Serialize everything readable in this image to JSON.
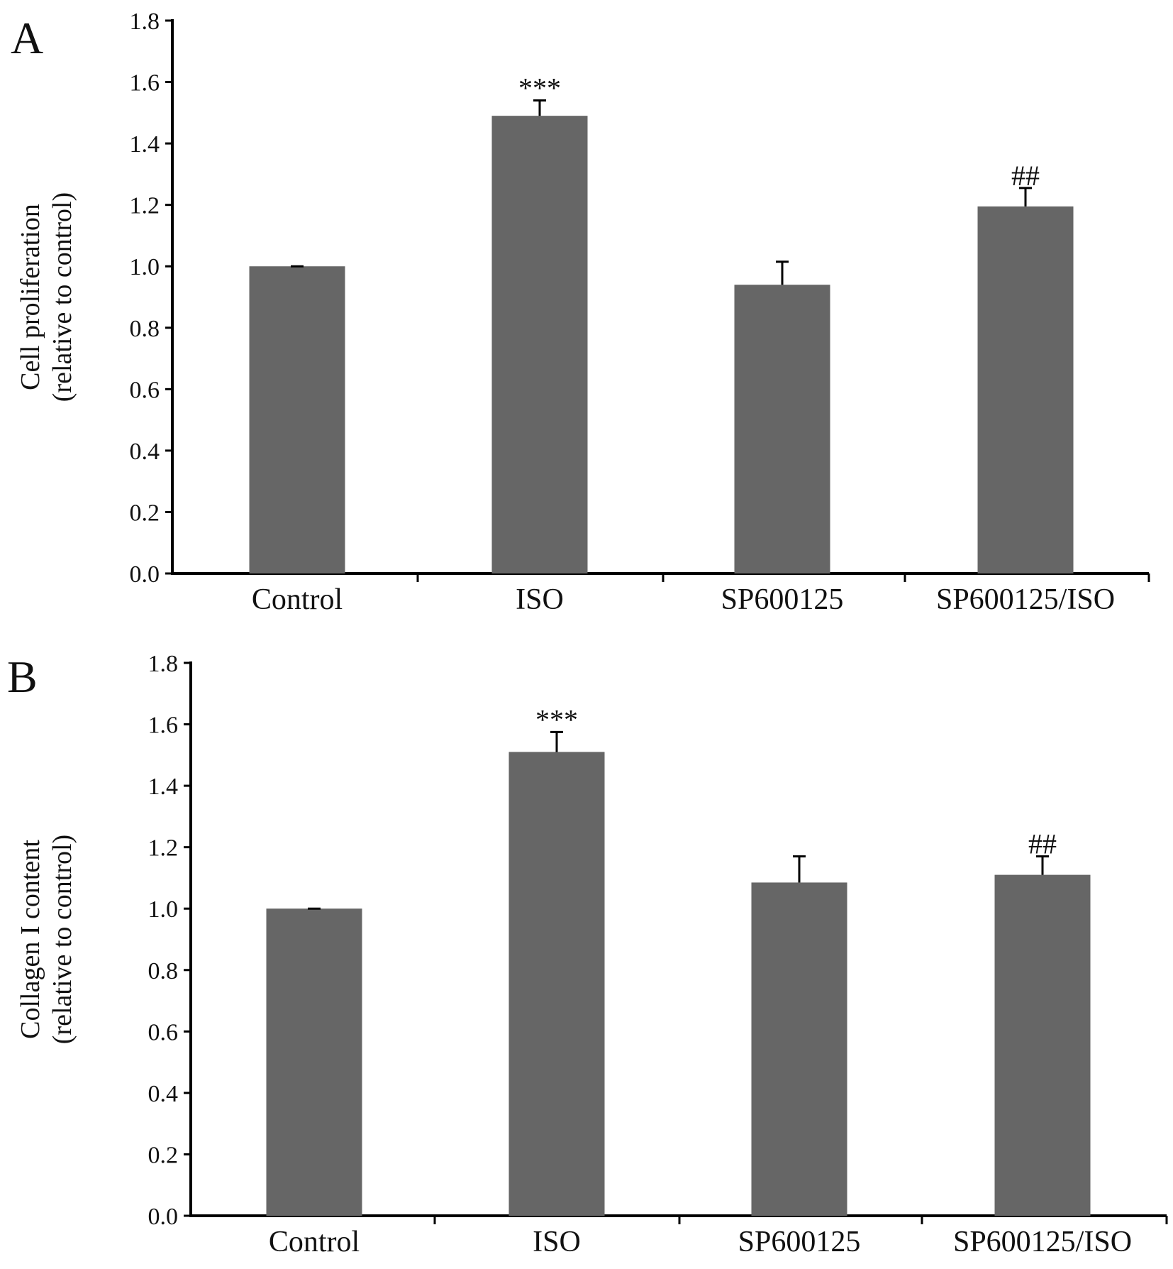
{
  "chart_data": [
    {
      "type": "bar",
      "panel_label": "A",
      "ylabel_line1": "Cell proliferation",
      "ylabel_line2": "(relative to control)",
      "categories": [
        "Control",
        "ISO",
        "SP600125",
        "SP600125/ISO"
      ],
      "values": [
        1.0,
        1.49,
        0.94,
        1.195
      ],
      "errors": [
        0.0,
        0.05,
        0.075,
        0.06
      ],
      "annotations": [
        "",
        "***",
        "",
        "##"
      ],
      "ylim": [
        0,
        1.8
      ],
      "yticks": [
        "0.0",
        "0.2",
        "0.4",
        "0.6",
        "0.8",
        "1.0",
        "1.2",
        "1.4",
        "1.6",
        "1.8"
      ],
      "grid": false,
      "bar_color": "#666666"
    },
    {
      "type": "bar",
      "panel_label": "B",
      "ylabel_line1": "Collagen I content",
      "ylabel_line2": "(relative to control)",
      "categories": [
        "Control",
        "ISO",
        "SP600125",
        "SP600125/ISO"
      ],
      "values": [
        1.0,
        1.51,
        1.085,
        1.11
      ],
      "errors": [
        0.0,
        0.065,
        0.085,
        0.06
      ],
      "annotations": [
        "",
        "***",
        "",
        "##"
      ],
      "ylim": [
        0,
        1.8
      ],
      "yticks": [
        "0.0",
        "0.2",
        "0.4",
        "0.6",
        "0.8",
        "1.0",
        "1.2",
        "1.4",
        "1.6",
        "1.8"
      ],
      "grid": false,
      "bar_color": "#666666"
    }
  ]
}
